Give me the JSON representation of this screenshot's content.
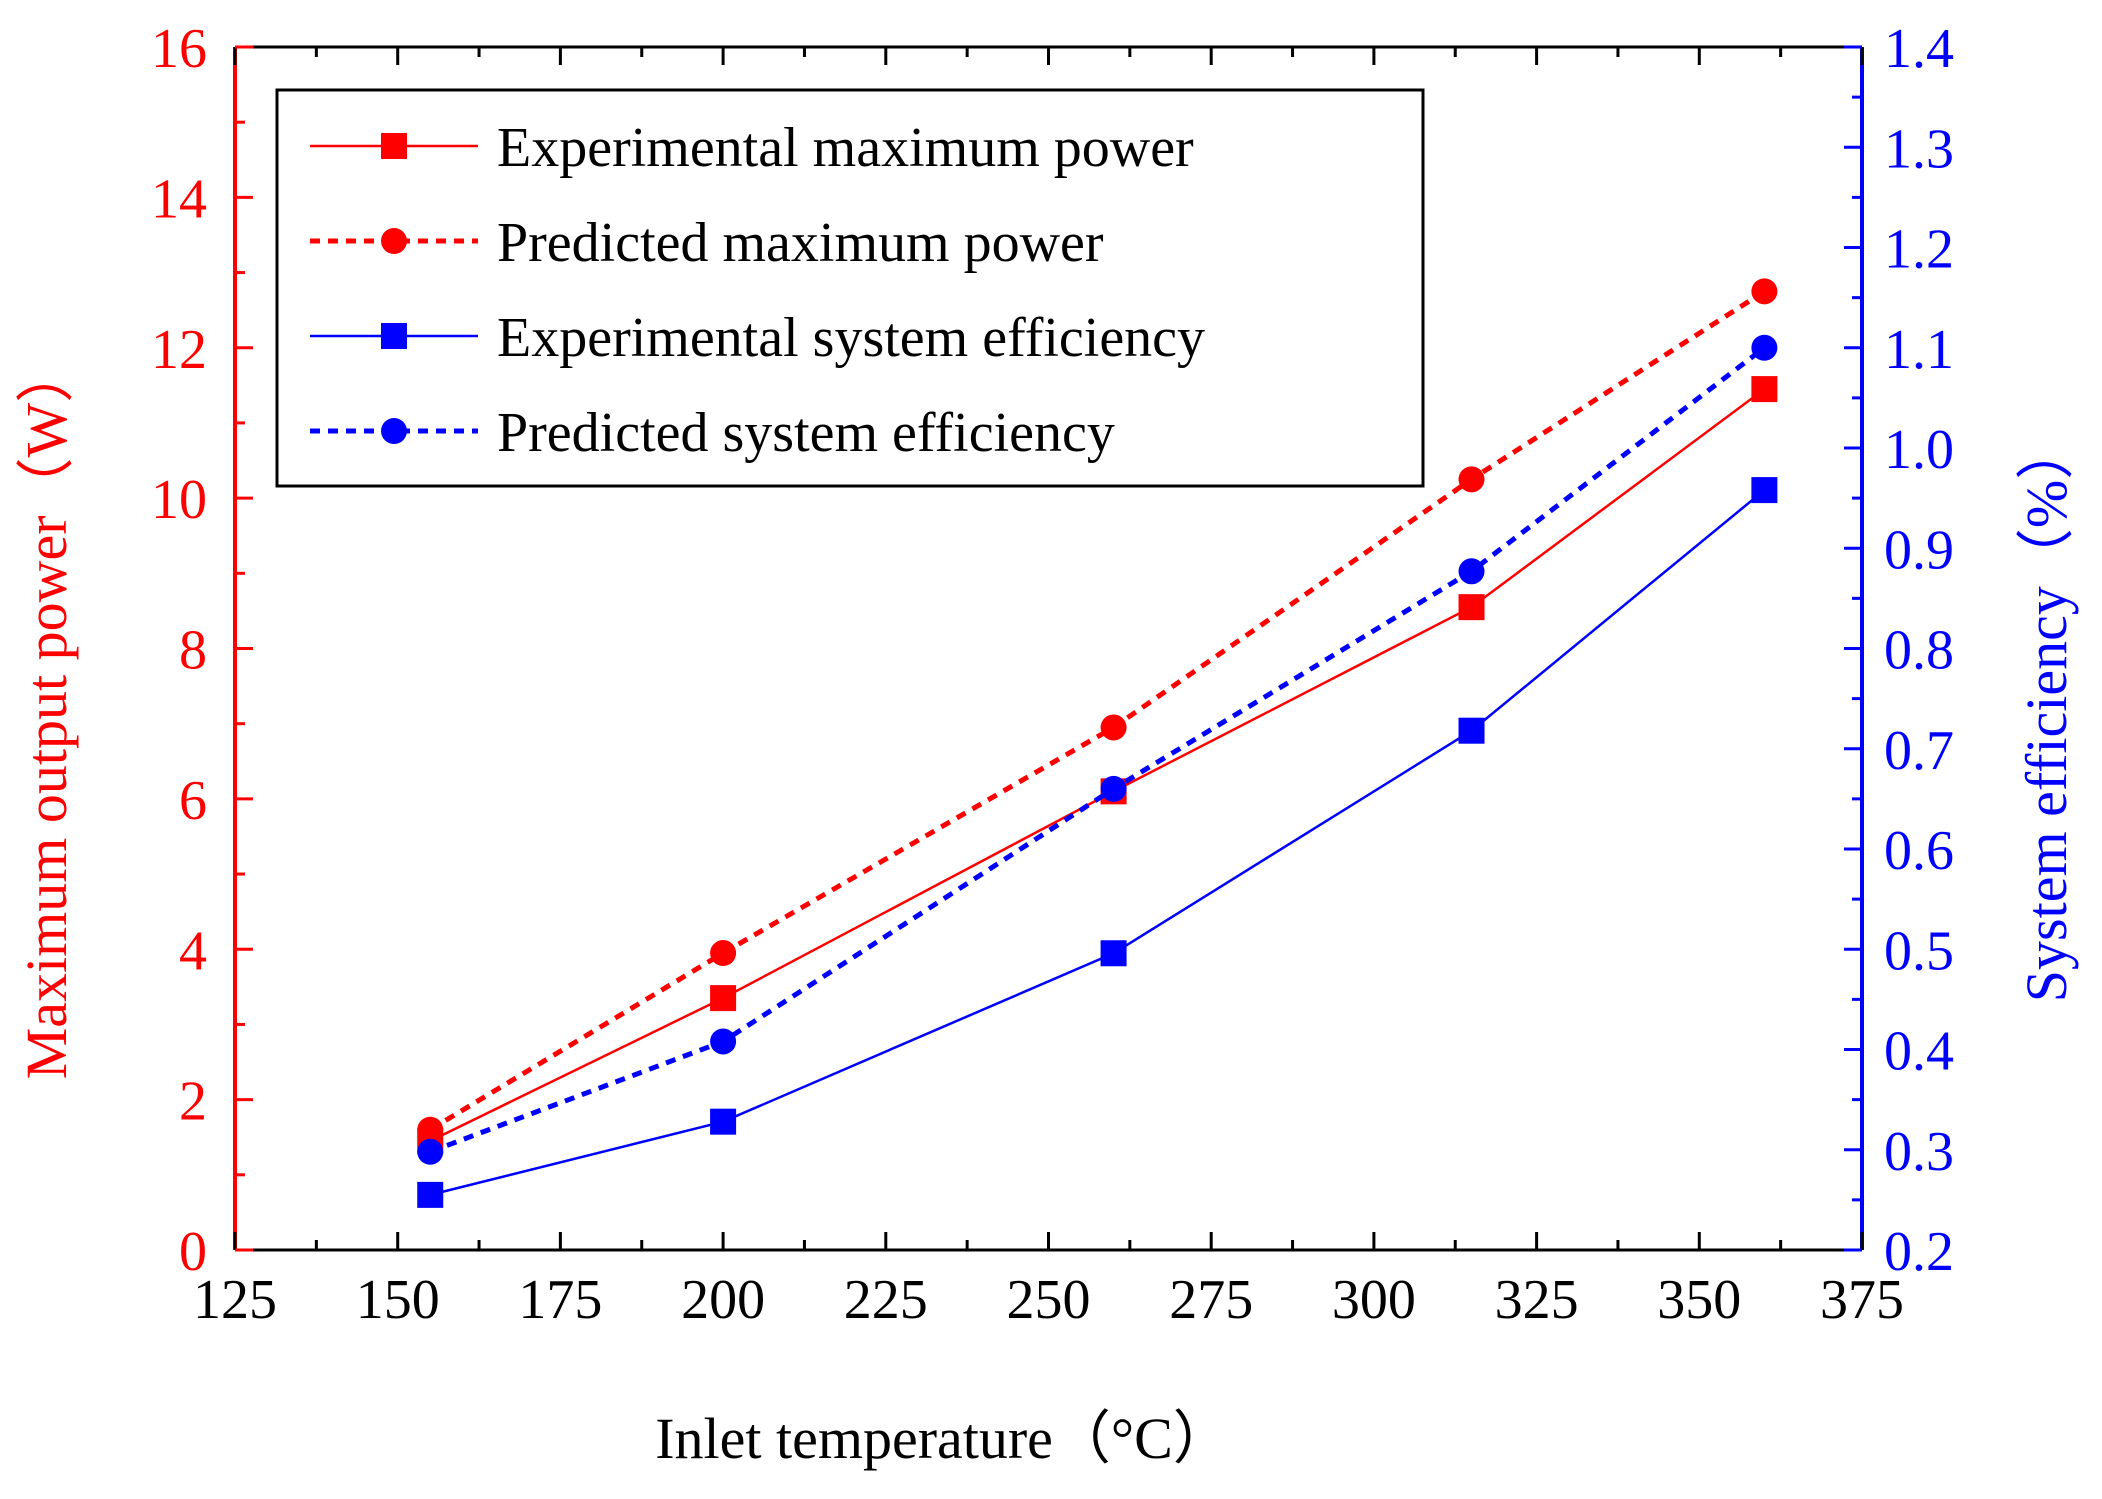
{
  "chart_data": {
    "type": "line",
    "title": "",
    "xlabel": "Inlet temperature（°C）",
    "ylabel": "Maximum output power（W）",
    "y2label": "System efficiency（%）",
    "xlim": [
      125,
      375
    ],
    "ylim": [
      0,
      16
    ],
    "y2lim": [
      0.2,
      1.4
    ],
    "xticks": [
      125,
      150,
      175,
      200,
      225,
      250,
      275,
      300,
      325,
      350,
      375
    ],
    "yticks": [
      0,
      2,
      4,
      6,
      8,
      10,
      12,
      14,
      16
    ],
    "y2ticks": [
      0.2,
      0.3,
      0.4,
      0.5,
      0.6,
      0.7,
      0.8,
      0.9,
      1.0,
      1.1,
      1.2,
      1.3,
      1.4
    ],
    "x": [
      155,
      200,
      260,
      315,
      360
    ],
    "grid": false,
    "legend_position": "top-left",
    "series": [
      {
        "name": "Experimental maximum power",
        "axis": "left",
        "color": "#ff0000",
        "line": "solid",
        "marker": "square",
        "values": [
          1.45,
          3.35,
          6.1,
          8.55,
          11.45
        ]
      },
      {
        "name": "Predicted maximum power",
        "axis": "left",
        "color": "#ff0000",
        "line": "dotted",
        "marker": "circle",
        "values": [
          1.6,
          3.95,
          6.95,
          10.25,
          12.75
        ]
      },
      {
        "name": "Experimental system efficiency",
        "axis": "right",
        "color": "#0000ff",
        "line": "solid",
        "marker": "square",
        "values": [
          0.255,
          0.328,
          0.496,
          0.718,
          0.958
        ]
      },
      {
        "name": "Predicted system efficiency",
        "axis": "right",
        "color": "#0000ff",
        "line": "dotted",
        "marker": "circle",
        "values": [
          0.298,
          0.408,
          0.66,
          0.877,
          1.1
        ]
      }
    ],
    "colors": {
      "left_axis": "#ff0000",
      "right_axis": "#0000ff",
      "bottom_axis": "#000000"
    }
  }
}
